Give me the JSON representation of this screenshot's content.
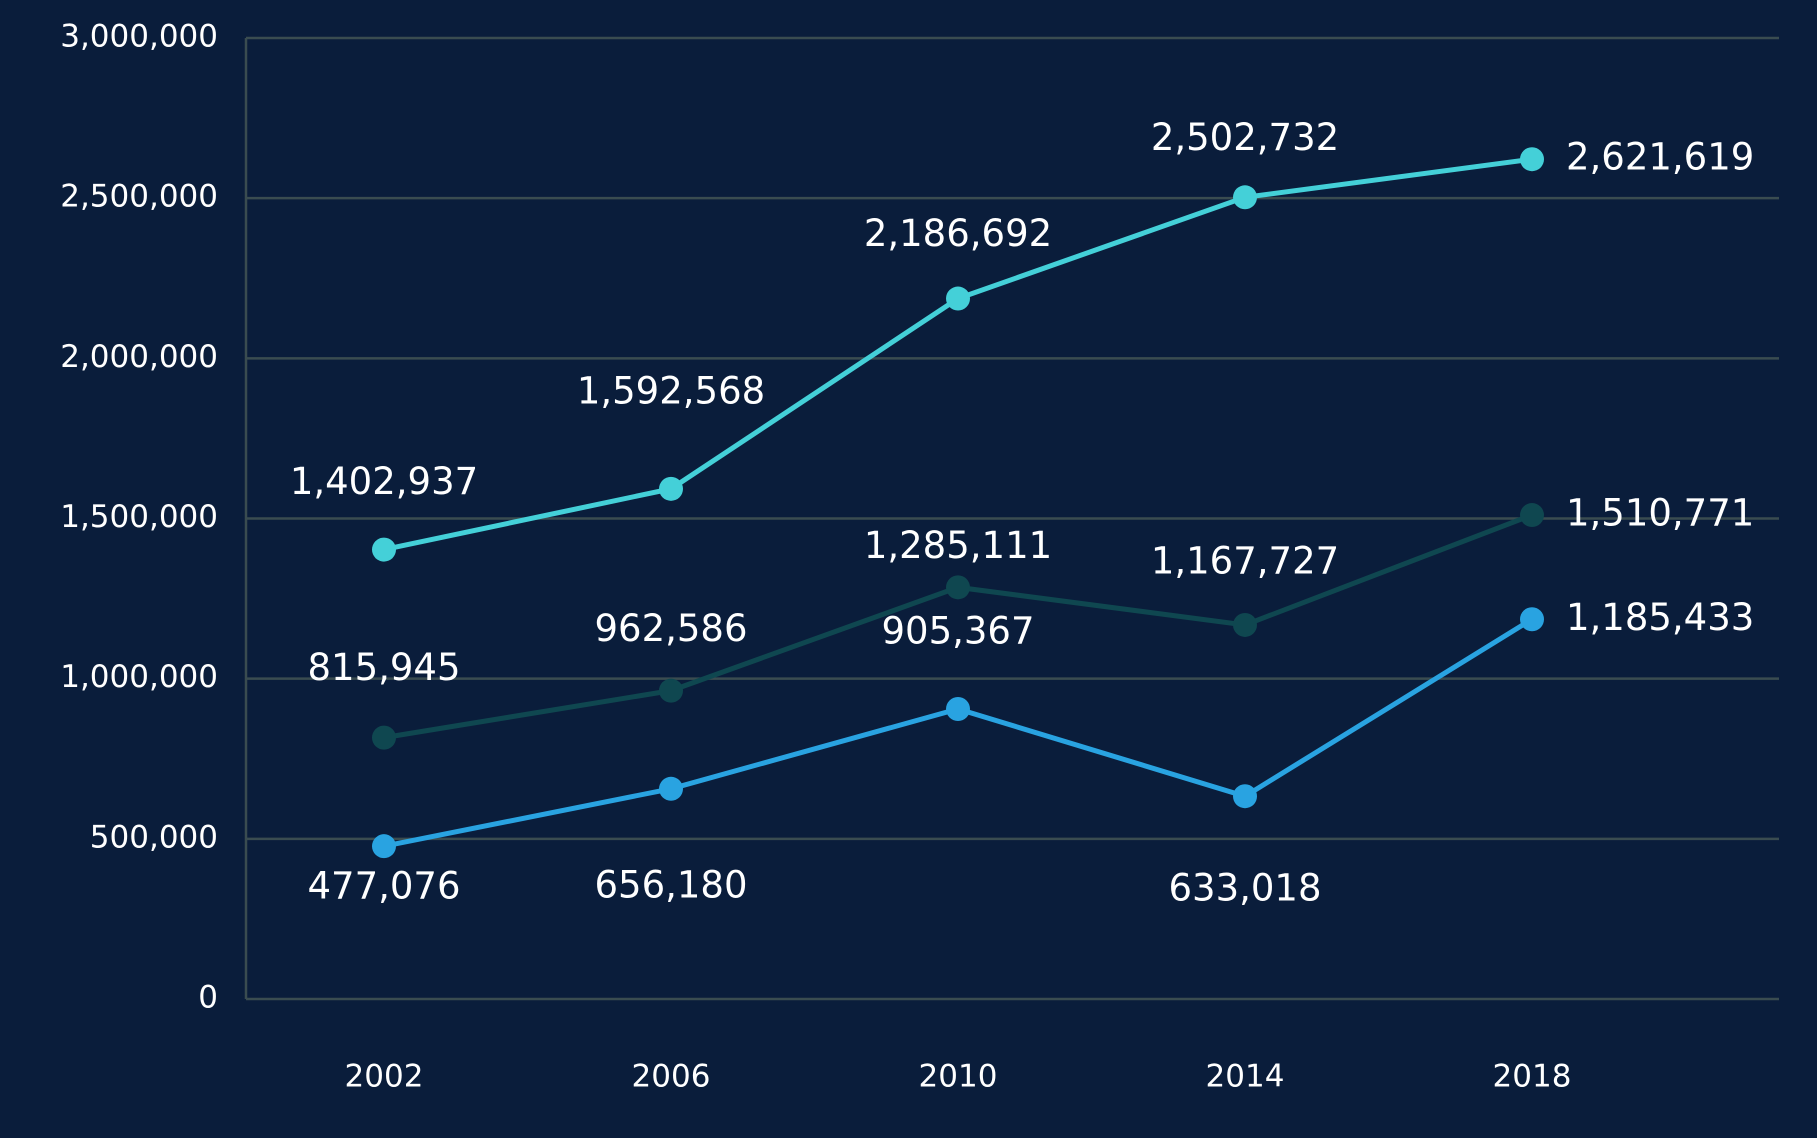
{
  "chart_data": {
    "type": "line",
    "categories": [
      "2002",
      "2006",
      "2010",
      "2014",
      "2018"
    ],
    "series": [
      {
        "color": "#44d0d8",
        "values": [
          1402937,
          1592568,
          2186692,
          2502732,
          2621619
        ],
        "value_labels": [
          "1,402,937",
          "1,592,568",
          "2,186,692",
          "2,502,732",
          "2,621,619"
        ]
      },
      {
        "color": "#0f4750",
        "values": [
          815945,
          962586,
          1285111,
          1167727,
          1510771
        ],
        "value_labels": [
          "815,945",
          "962,586",
          "1,285,111",
          "1,167,727",
          "1,510,771"
        ]
      },
      {
        "color": "#29a3e1",
        "values": [
          477076,
          656180,
          905367,
          633018,
          1185433
        ],
        "value_labels": [
          "477,076",
          "656,180",
          "905,367",
          "633,018",
          "1,185,433"
        ]
      }
    ],
    "ylim": [
      0,
      3000000
    ],
    "yticks": [
      0,
      {
        "value": 500000,
        "label": "500,000"
      },
      {
        "value": 1000000,
        "label": "1,000,000"
      },
      {
        "value": 1500000,
        "label": "1,500,000"
      },
      {
        "value": 2000000,
        "label": "2,000,000"
      },
      {
        "value": 2500000,
        "label": "2,500,000"
      },
      {
        "value": 3000000,
        "label": "3,000,000"
      }
    ],
    "grid": true
  }
}
